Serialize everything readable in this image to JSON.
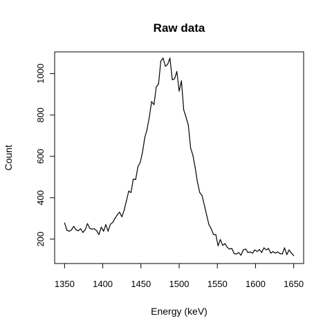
{
  "chart_data": {
    "type": "line",
    "title": "Raw data",
    "xlabel": "Energy (keV)",
    "ylabel": "Count",
    "xlim": [
      1337,
      1663
    ],
    "ylim": [
      82,
      1105
    ],
    "xticks": [
      1350,
      1400,
      1450,
      1500,
      1550,
      1600,
      1650
    ],
    "yticks": [
      200,
      400,
      600,
      800,
      1000
    ],
    "grid": false,
    "legend": "none",
    "line_color": "#000000",
    "series": [
      {
        "x": [
          1350,
          1353,
          1356,
          1359,
          1362,
          1365,
          1368,
          1371,
          1374,
          1377,
          1380,
          1383,
          1386,
          1389,
          1392,
          1395,
          1398,
          1401,
          1404,
          1407,
          1410,
          1413,
          1416,
          1419,
          1422,
          1425,
          1428,
          1431,
          1434,
          1437,
          1440,
          1443,
          1446,
          1449,
          1452,
          1455,
          1458,
          1461,
          1464,
          1467,
          1470,
          1473,
          1476,
          1479,
          1482,
          1485,
          1488,
          1491,
          1494,
          1497,
          1500,
          1503,
          1506,
          1509,
          1512,
          1515,
          1518,
          1521,
          1524,
          1527,
          1530,
          1533,
          1536,
          1539,
          1542,
          1545,
          1548,
          1551,
          1554,
          1557,
          1560,
          1563,
          1566,
          1569,
          1572,
          1575,
          1578,
          1581,
          1584,
          1587,
          1590,
          1593,
          1596,
          1599,
          1602,
          1605,
          1608,
          1611,
          1614,
          1617,
          1620,
          1623,
          1626,
          1629,
          1632,
          1635,
          1638,
          1641,
          1644,
          1647,
          1650
        ],
        "y": [
          278,
          243,
          238,
          244,
          262,
          245,
          240,
          250,
          232,
          245,
          275,
          252,
          248,
          250,
          240,
          222,
          258,
          238,
          270,
          238,
          272,
          280,
          300,
          318,
          330,
          308,
          340,
          385,
          432,
          425,
          490,
          488,
          550,
          570,
          620,
          690,
          730,
          790,
          865,
          850,
          935,
          950,
          1060,
          1075,
          1035,
          1045,
          1075,
          970,
          975,
          1010,
          915,
          965,
          825,
          790,
          750,
          640,
          605,
          545,
          475,
          425,
          410,
          365,
          315,
          270,
          250,
          222,
          222,
          168,
          198,
          170,
          178,
          160,
          152,
          155,
          130,
          128,
          135,
          122,
          148,
          152,
          135,
          138,
          132,
          148,
          140,
          150,
          135,
          158,
          148,
          155,
          132,
          140,
          132,
          138,
          130,
          128,
          158,
          125,
          148,
          132,
          120
        ]
      }
    ]
  }
}
